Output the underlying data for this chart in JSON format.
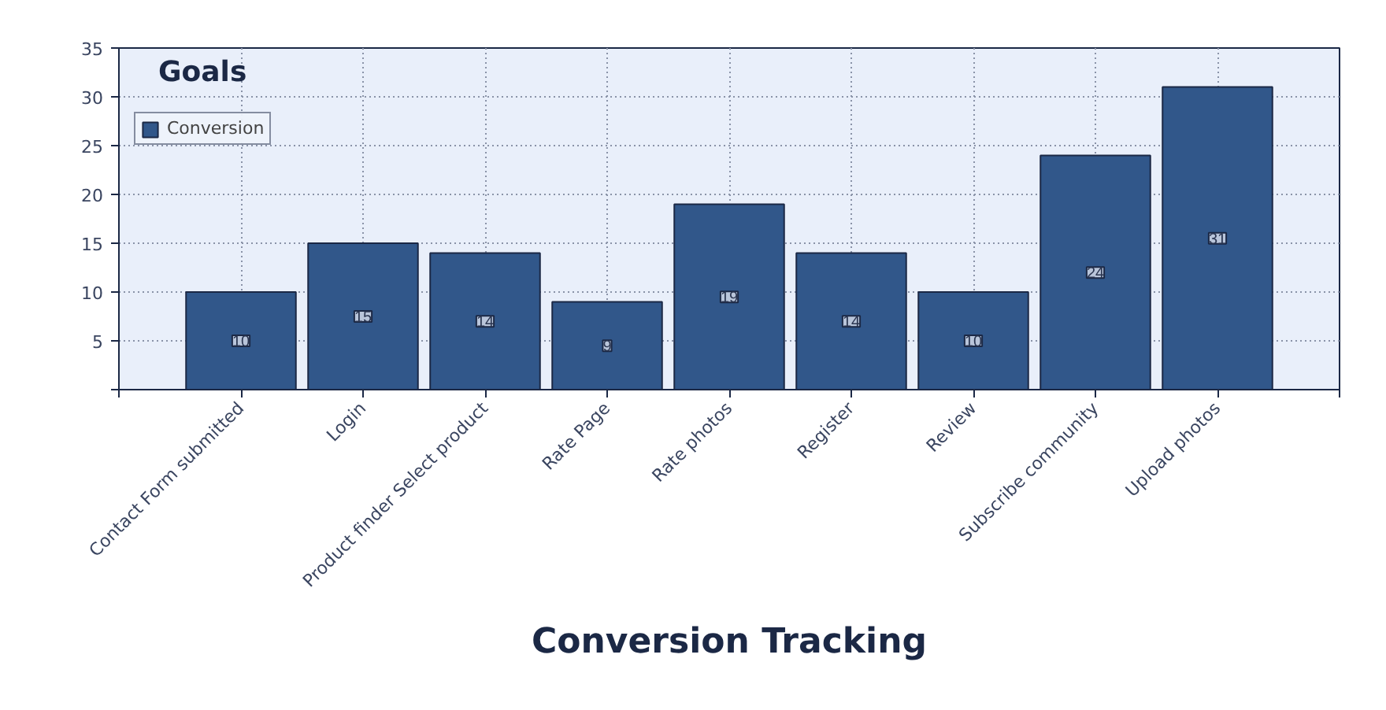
{
  "chart_data": {
    "type": "bar",
    "title": "Goals",
    "xlabel": "Conversion Tracking",
    "categories": [
      "Contact Form submitted",
      "Login",
      "Product finder Select product",
      "Rate Page",
      "Rate photos",
      "Register",
      "Review",
      "Subscribe community",
      "Upload photos"
    ],
    "series": [
      {
        "name": "Conversion",
        "color": "#31578a",
        "values": [
          10,
          15,
          14,
          9,
          19,
          14,
          10,
          24,
          31
        ]
      }
    ],
    "ylim": [
      0,
      35
    ],
    "yticks": [
      {
        "value": 0,
        "label": null
      },
      5,
      10,
      15,
      20,
      25,
      30,
      35
    ],
    "grid": true,
    "legend": "top left",
    "data_labels": true
  }
}
